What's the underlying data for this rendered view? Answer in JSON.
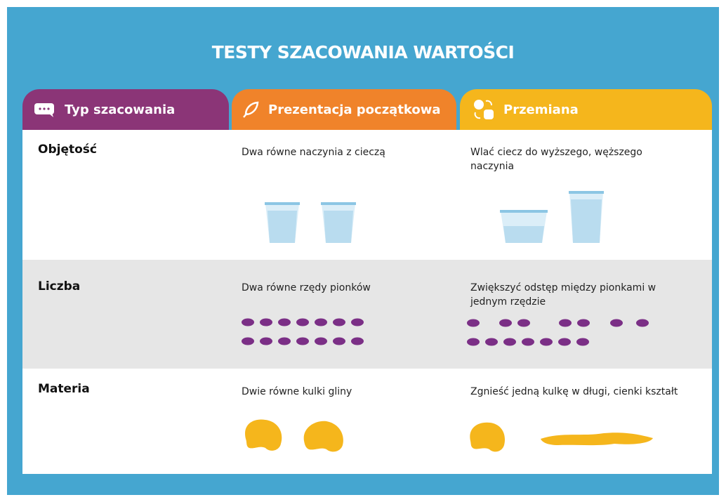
{
  "header": {
    "title": "TESTY SZACOWANIA WARTOŚCI"
  },
  "table": {
    "columns": [
      "Typ szacowania",
      "Prezentacja początkowa",
      "Przemiana"
    ],
    "rows": [
      [
        "Objętość",
        "Dwa równe naczynia z cieczą",
        "Wlać ciecz  do wyższego, węższego naczynia"
      ],
      [
        "Liczba",
        "Dwa równe rzędy pionków",
        "Zwiększyć odstęp między pionkami w jednym rzędzie"
      ],
      [
        "Materia",
        "Dwie równe kulki gliny",
        "Zgnieść jedną kulkę w długi, cienki kształt"
      ]
    ]
  }
}
